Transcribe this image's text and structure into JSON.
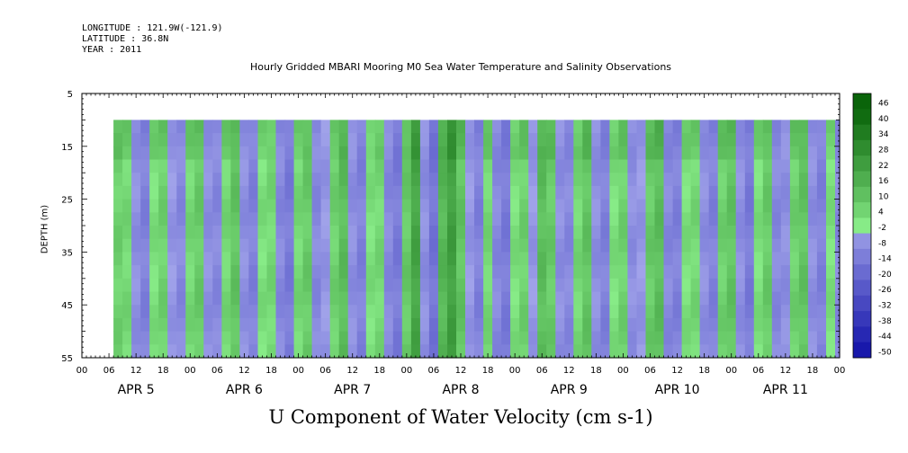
{
  "header": {
    "longitude": "LONGITUDE : 121.9W(-121.9)",
    "latitude": "LATITUDE : 36.8N",
    "year": "YEAR : 2011"
  },
  "chart_data": {
    "type": "heatmap",
    "title": "Hourly Gridded MBARI Mooring M0 Sea Water Temperature and Salinity Observations",
    "xlabel": "U Component of Water Velocity (cm s-1)",
    "ylabel": "DEPTH (m)",
    "y_ticks": [
      5,
      15,
      25,
      35,
      45,
      55
    ],
    "ylim": [
      55,
      5
    ],
    "y_inverted": true,
    "x_range_hours": [
      0,
      168
    ],
    "x_hour_ticks": [
      "00",
      "06",
      "12",
      "18",
      "00",
      "06",
      "12",
      "18",
      "00",
      "06",
      "12",
      "18",
      "00",
      "06",
      "12",
      "18",
      "00",
      "06",
      "12",
      "18",
      "00",
      "06",
      "12",
      "18",
      "00",
      "06",
      "12",
      "18",
      "00"
    ],
    "day_labels": [
      "APR  5",
      "APR  6",
      "APR  7",
      "APR  8",
      "APR  9",
      "APR 10",
      "APR 11"
    ],
    "data_start_hour": 7,
    "data_depth_range": [
      10,
      55
    ],
    "colorbar": {
      "levels": [
        -50,
        -44,
        -38,
        -32,
        -26,
        -20,
        -14,
        -8,
        -2,
        4,
        10,
        16,
        22,
        28,
        34,
        40,
        46
      ],
      "labels": [
        "46",
        "40",
        "34",
        "28",
        "22",
        "16",
        "10",
        "4",
        "-2",
        "-8",
        "-14",
        "-20",
        "-26",
        "-32",
        "-38",
        "-44",
        "-50"
      ]
    },
    "colors": {
      "negative_light": "#a6a8ec",
      "negative_strong": "#1010a8",
      "positive_light": "#8cf08c",
      "positive_strong": "#0a640a"
    },
    "column_profile_u_cm_s": [
      [
        7,
        8
      ],
      [
        9,
        6
      ],
      [
        11,
        -6
      ],
      [
        13,
        -10
      ],
      [
        15,
        4
      ],
      [
        17,
        8
      ],
      [
        19,
        -4
      ],
      [
        21,
        -8
      ],
      [
        23,
        6
      ],
      [
        25,
        10
      ],
      [
        27,
        -6
      ],
      [
        29,
        -8
      ],
      [
        31,
        6
      ],
      [
        33,
        12
      ],
      [
        35,
        -6
      ],
      [
        37,
        -10
      ],
      [
        39,
        4
      ],
      [
        41,
        6
      ],
      [
        43,
        -8
      ],
      [
        45,
        -12
      ],
      [
        47,
        6
      ],
      [
        49,
        10
      ],
      [
        51,
        -8
      ],
      [
        53,
        -4
      ],
      [
        55,
        8
      ],
      [
        57,
        14
      ],
      [
        59,
        -6
      ],
      [
        61,
        -10
      ],
      [
        63,
        4
      ],
      [
        65,
        6
      ],
      [
        67,
        -8
      ],
      [
        69,
        -12
      ],
      [
        71,
        10
      ],
      [
        73,
        22
      ],
      [
        75,
        -6
      ],
      [
        77,
        -14
      ],
      [
        79,
        16
      ],
      [
        81,
        24
      ],
      [
        83,
        12
      ],
      [
        85,
        -4
      ],
      [
        87,
        -10
      ],
      [
        89,
        6
      ],
      [
        91,
        -8
      ],
      [
        93,
        -12
      ],
      [
        95,
        4
      ],
      [
        97,
        8
      ],
      [
        99,
        -4
      ],
      [
        101,
        14
      ],
      [
        103,
        10
      ],
      [
        105,
        -6
      ],
      [
        107,
        -8
      ],
      [
        109,
        6
      ],
      [
        111,
        12
      ],
      [
        113,
        -6
      ],
      [
        115,
        -10
      ],
      [
        117,
        4
      ],
      [
        119,
        8
      ],
      [
        121,
        -6
      ],
      [
        123,
        -4
      ],
      [
        125,
        10
      ],
      [
        127,
        14
      ],
      [
        129,
        -8
      ],
      [
        131,
        -10
      ],
      [
        133,
        4
      ],
      [
        135,
        6
      ],
      [
        137,
        -6
      ],
      [
        139,
        -10
      ],
      [
        141,
        8
      ],
      [
        143,
        12
      ],
      [
        145,
        -6
      ],
      [
        147,
        -12
      ],
      [
        149,
        4
      ],
      [
        151,
        10
      ],
      [
        153,
        -8
      ],
      [
        155,
        -6
      ],
      [
        157,
        8
      ],
      [
        159,
        12
      ],
      [
        161,
        -6
      ],
      [
        163,
        -10
      ],
      [
        165,
        4
      ],
      [
        167,
        -8
      ]
    ]
  }
}
